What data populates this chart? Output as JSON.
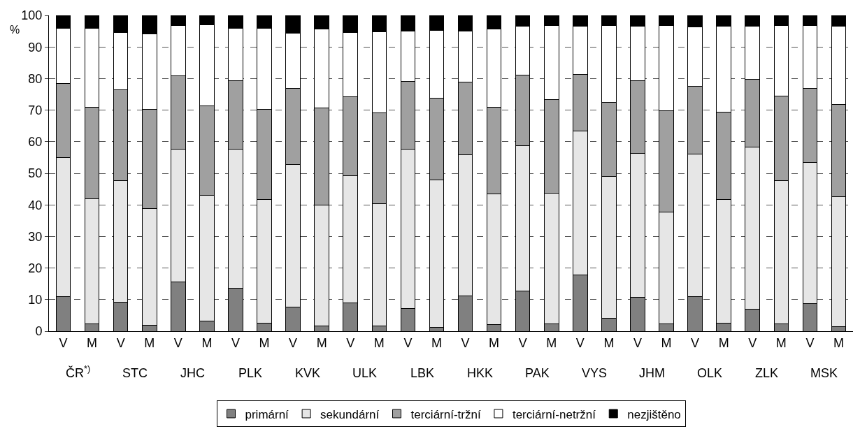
{
  "chart_data": {
    "type": "bar",
    "stacked": true,
    "ylabel": "%",
    "ylim": [
      0,
      100
    ],
    "yticks": [
      0,
      10,
      20,
      30,
      40,
      50,
      60,
      70,
      80,
      90,
      100
    ],
    "grid": "y",
    "legend": "bottom",
    "categories": [
      "V",
      "M",
      "V",
      "M",
      "V",
      "M",
      "V",
      "M",
      "V",
      "M",
      "V",
      "M",
      "V",
      "M",
      "V",
      "M",
      "V",
      "M",
      "V",
      "M",
      "V",
      "M",
      "V",
      "M",
      "V",
      "M",
      "V",
      "M"
    ],
    "annotations": [
      "ČR$^{*)}$",
      "STC",
      "JHC",
      "PLK",
      "KVK",
      "ULK",
      "LBK",
      "HKK",
      "PAK",
      "VYS",
      "JHM",
      "OLK",
      "ZLK",
      "MSK"
    ],
    "series": [
      {
        "name": "primární",
        "color": "#808080",
        "values": [
          11,
          2.3,
          9.2,
          1.9,
          15.7,
          3.3,
          13.7,
          2.5,
          7.6,
          1.6,
          9,
          1.6,
          7.1,
          1.2,
          11.2,
          2.2,
          12.7,
          2.3,
          17.9,
          4.1,
          10.7,
          2.3,
          11,
          2.6,
          6.9,
          2.3,
          8.7,
          1.4
        ]
      },
      {
        "name": "sekundární",
        "color": "#e6e6e6",
        "values": [
          44,
          39.7,
          38.5,
          36.9,
          42,
          39.7,
          43.9,
          39.1,
          45.2,
          38.3,
          40.3,
          38.7,
          50.6,
          46.6,
          44.6,
          41.2,
          46.1,
          41.3,
          45.5,
          44.8,
          45.5,
          35.5,
          45.1,
          39,
          51.3,
          45.4,
          44.8,
          41.2
        ]
      },
      {
        "name": "terciární-tržní",
        "color": "#a0a0a0",
        "values": [
          23.5,
          29,
          28.8,
          31.5,
          23.1,
          28.4,
          21.8,
          28.6,
          24,
          30.7,
          24.9,
          28.8,
          21.3,
          26,
          23,
          27.4,
          22.2,
          29.8,
          18,
          23.5,
          23.1,
          32,
          21.5,
          27.7,
          21.5,
          26.7,
          23.4,
          29.2
        ]
      },
      {
        "name": "terciární-netržní",
        "color": "#ffffff",
        "values": [
          17.5,
          25,
          18,
          23.9,
          16,
          25.6,
          16.6,
          25.6,
          17.5,
          25.1,
          20.3,
          25.6,
          16.1,
          21.5,
          16.3,
          24.8,
          15.5,
          23.5,
          15.1,
          24.3,
          17.2,
          27.1,
          18.8,
          27.2,
          16.9,
          22.4,
          20,
          24.7
        ]
      },
      {
        "name": "nezjištěno",
        "color": "#000000",
        "values": [
          4,
          4,
          5.5,
          5.8,
          3.2,
          3,
          4,
          4.2,
          5.7,
          4.3,
          5.5,
          5.3,
          4.9,
          4.7,
          4.9,
          4.4,
          3.5,
          3.1,
          3.5,
          3.3,
          3.5,
          3.1,
          3.6,
          3.5,
          3.4,
          3.2,
          3.1,
          3.5
        ]
      }
    ]
  }
}
